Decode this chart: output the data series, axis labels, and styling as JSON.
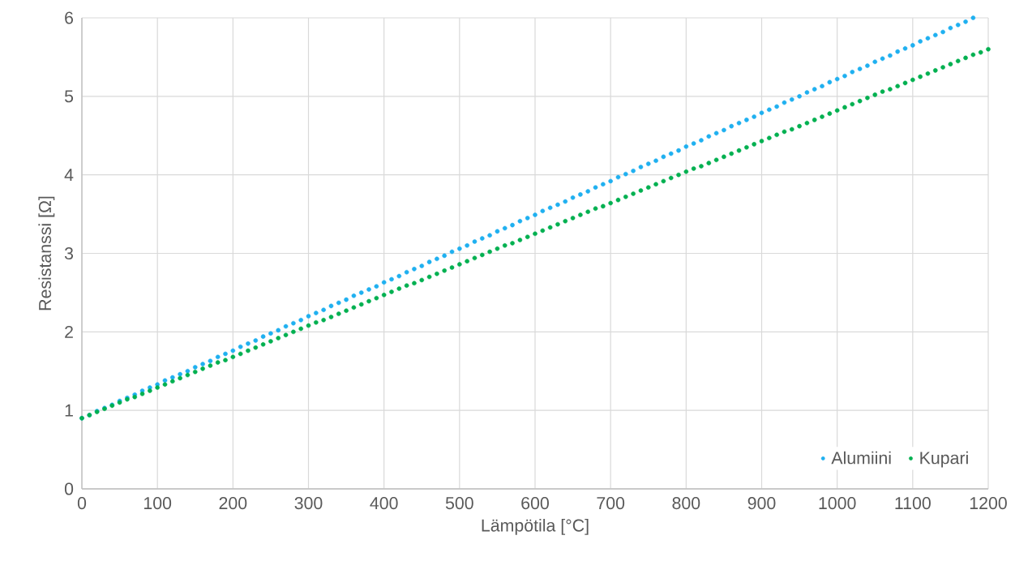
{
  "chart_data": {
    "type": "scatter",
    "xlabel": "Lämpötila [°C]",
    "ylabel": "Resistanssi [Ω]",
    "xlim": [
      0,
      1200
    ],
    "ylim": [
      0,
      6
    ],
    "xticks": [
      0,
      100,
      200,
      300,
      400,
      500,
      600,
      700,
      800,
      900,
      1000,
      1100,
      1200
    ],
    "yticks": [
      0,
      1,
      2,
      3,
      4,
      5,
      6
    ],
    "grid": true,
    "legend": "bottom right",
    "marker": "circle",
    "series": [
      {
        "name": "Alumiini",
        "color": "#1fb0f0",
        "x": [
          0,
          10,
          20,
          30,
          40,
          50,
          60,
          70,
          80,
          90,
          100,
          110,
          120,
          130,
          140,
          150,
          160,
          170,
          180,
          190,
          200,
          210,
          220,
          230,
          240,
          250,
          260,
          270,
          280,
          290,
          300,
          310,
          320,
          330,
          340,
          350,
          360,
          370,
          380,
          390,
          400,
          410,
          420,
          430,
          440,
          450,
          460,
          470,
          480,
          490,
          500,
          510,
          520,
          530,
          540,
          550,
          560,
          570,
          580,
          590,
          600,
          610,
          620,
          630,
          640,
          650,
          660,
          670,
          680,
          690,
          700,
          710,
          720,
          730,
          740,
          750,
          760,
          770,
          780,
          790,
          800,
          810,
          820,
          830,
          840,
          850,
          860,
          870,
          880,
          890,
          900,
          910,
          920,
          930,
          940,
          950,
          960,
          970,
          980,
          990,
          1000,
          1010,
          1020,
          1030,
          1040,
          1050,
          1060,
          1070,
          1080,
          1090,
          1100,
          1110,
          1120,
          1130,
          1140,
          1150,
          1160,
          1170,
          1180
        ],
        "values": [
          0.9,
          0.94,
          0.99,
          1.03,
          1.07,
          1.12,
          1.16,
          1.2,
          1.25,
          1.29,
          1.33,
          1.38,
          1.42,
          1.46,
          1.5,
          1.55,
          1.59,
          1.63,
          1.68,
          1.72,
          1.76,
          1.81,
          1.85,
          1.89,
          1.94,
          1.98,
          2.02,
          2.07,
          2.11,
          2.15,
          2.2,
          2.24,
          2.28,
          2.33,
          2.37,
          2.41,
          2.46,
          2.5,
          2.54,
          2.58,
          2.63,
          2.67,
          2.71,
          2.76,
          2.8,
          2.84,
          2.89,
          2.93,
          2.97,
          3.02,
          3.06,
          3.1,
          3.15,
          3.19,
          3.23,
          3.28,
          3.32,
          3.36,
          3.41,
          3.45,
          3.49,
          3.54,
          3.58,
          3.62,
          3.66,
          3.71,
          3.75,
          3.79,
          3.84,
          3.88,
          3.92,
          3.97,
          4.01,
          4.05,
          4.1,
          4.14,
          4.18,
          4.23,
          4.27,
          4.31,
          4.36,
          4.4,
          4.44,
          4.49,
          4.53,
          4.57,
          4.62,
          4.66,
          4.7,
          4.74,
          4.79,
          4.83,
          4.87,
          4.92,
          4.96,
          5.0,
          5.05,
          5.09,
          5.13,
          5.18,
          5.22,
          5.26,
          5.31,
          5.35,
          5.39,
          5.44,
          5.48,
          5.52,
          5.57,
          5.61,
          5.65,
          5.7,
          5.74,
          5.78,
          5.82,
          5.87,
          5.91,
          5.95,
          6.0
        ]
      },
      {
        "name": "Kupari",
        "color": "#00b050",
        "x": [
          0,
          10,
          20,
          30,
          40,
          50,
          60,
          70,
          80,
          90,
          100,
          110,
          120,
          130,
          140,
          150,
          160,
          170,
          180,
          190,
          200,
          210,
          220,
          230,
          240,
          250,
          260,
          270,
          280,
          290,
          300,
          310,
          320,
          330,
          340,
          350,
          360,
          370,
          380,
          390,
          400,
          410,
          420,
          430,
          440,
          450,
          460,
          470,
          480,
          490,
          500,
          510,
          520,
          530,
          540,
          550,
          560,
          570,
          580,
          590,
          600,
          610,
          620,
          630,
          640,
          650,
          660,
          670,
          680,
          690,
          700,
          710,
          720,
          730,
          740,
          750,
          760,
          770,
          780,
          790,
          800,
          810,
          820,
          830,
          840,
          850,
          860,
          870,
          880,
          890,
          900,
          910,
          920,
          930,
          940,
          950,
          960,
          970,
          980,
          990,
          1000,
          1010,
          1020,
          1030,
          1040,
          1050,
          1060,
          1070,
          1080,
          1090,
          1100,
          1110,
          1120,
          1130,
          1140,
          1150,
          1160,
          1170,
          1180,
          1190,
          1200
        ],
        "values": [
          0.9,
          0.94,
          0.98,
          1.02,
          1.06,
          1.1,
          1.14,
          1.17,
          1.21,
          1.25,
          1.29,
          1.33,
          1.37,
          1.41,
          1.45,
          1.49,
          1.53,
          1.57,
          1.61,
          1.64,
          1.68,
          1.72,
          1.76,
          1.8,
          1.84,
          1.88,
          1.92,
          1.96,
          2.0,
          2.04,
          2.08,
          2.12,
          2.15,
          2.19,
          2.23,
          2.27,
          2.31,
          2.35,
          2.39,
          2.43,
          2.47,
          2.51,
          2.55,
          2.59,
          2.62,
          2.66,
          2.7,
          2.74,
          2.78,
          2.82,
          2.86,
          2.9,
          2.94,
          2.98,
          3.02,
          3.06,
          3.1,
          3.13,
          3.17,
          3.21,
          3.25,
          3.29,
          3.33,
          3.37,
          3.41,
          3.45,
          3.49,
          3.53,
          3.57,
          3.6,
          3.64,
          3.68,
          3.72,
          3.76,
          3.8,
          3.84,
          3.88,
          3.92,
          3.96,
          4.0,
          4.04,
          4.08,
          4.11,
          4.15,
          4.19,
          4.23,
          4.27,
          4.31,
          4.35,
          4.39,
          4.43,
          4.47,
          4.51,
          4.55,
          4.58,
          4.62,
          4.66,
          4.7,
          4.74,
          4.78,
          4.82,
          4.86,
          4.9,
          4.94,
          4.98,
          5.02,
          5.06,
          5.09,
          5.13,
          5.17,
          5.21,
          5.25,
          5.29,
          5.33,
          5.37,
          5.41,
          5.45,
          5.49,
          5.53,
          5.56,
          5.6
        ]
      }
    ]
  }
}
